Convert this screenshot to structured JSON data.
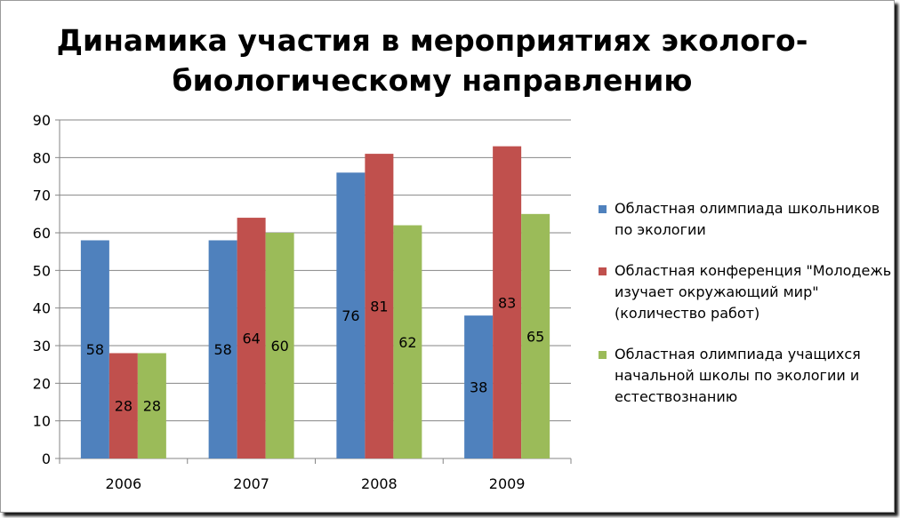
{
  "title": "Динамика участия в мероприятиях эколого-биологическому направлению",
  "chart_data": {
    "type": "bar",
    "title": "Динамика участия в мероприятиях эколого-биологическому направлению",
    "categories": [
      "2006",
      "2007",
      "2008",
      "2009"
    ],
    "series": [
      {
        "name": "Областная олимпиада школьников по экологии",
        "values": [
          58,
          58,
          76,
          38
        ],
        "color": "#4F81BD"
      },
      {
        "name": "Областная конференция \"Молодежь изучает окружающий мир\"(количество работ)",
        "values": [
          28,
          64,
          81,
          83
        ],
        "color": "#C0504D"
      },
      {
        "name": "Областная олимпиада учащихся начальной школы по экологии и естествознанию",
        "values": [
          28,
          60,
          62,
          65
        ],
        "color": "#9BBB59"
      }
    ],
    "ylim": [
      0,
      90
    ],
    "yticks": [
      0,
      10,
      20,
      30,
      40,
      50,
      60,
      70,
      80,
      90
    ],
    "grid": true,
    "legend_position": "right",
    "data_labels": true
  }
}
